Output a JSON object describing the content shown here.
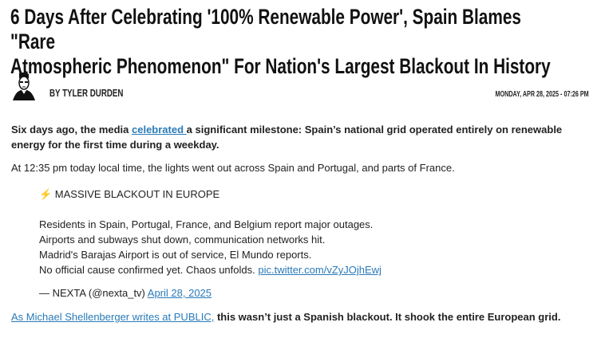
{
  "article": {
    "title_line1": "6 Days After Celebrating '100% Renewable Power', Spain Blames \"Rare",
    "title_line2": "Atmospheric Phenomenon\" For Nation's Largest Blackout In History",
    "author": "BY TYLER DURDEN",
    "date": "MONDAY, APR 28, 2025 - 07:26 PM",
    "p1_before": "Six days ago, the media ",
    "p1_link": "celebrated ",
    "p1_after": "a significant milestone: Spain’s national grid operated entirely on renewable energy for the first time during a weekday.",
    "p2": "At 12:35 pm today local time, the lights went out across Spain and Portugal, and parts of France.",
    "p3_link": "As Michael Shellenberger writes at PUBLIC,",
    "p3_after": " this wasn’t just a Spanish blackout. It shook the entire European grid."
  },
  "tweet": {
    "headline": "⚡ MASSIVE BLACKOUT IN EUROPE",
    "lines": [
      "Residents in Spain, Portugal, France, and Belgium report major outages.",
      "Airports and subways shut down, communication networks hit.",
      "Madrid's Barajas Airport is out of service, El Mundo reports.",
      "No official cause confirmed yet. Chaos unfolds. "
    ],
    "pic_link": "pic.twitter.com/vZyJOjhEwj",
    "attribution": "— NEXTA (@nexta_tv) ",
    "date_link": "April 28, 2025"
  },
  "colors": {
    "link": "#2a7ab8"
  }
}
